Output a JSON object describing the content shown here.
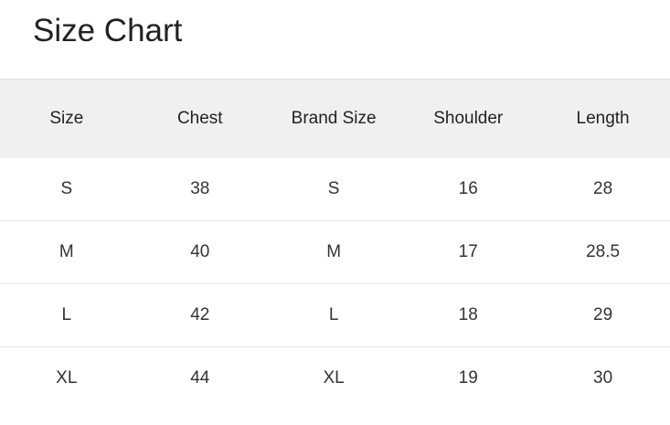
{
  "title": "Size Chart",
  "headers": [
    "Size",
    "Chest",
    "Brand Size",
    "Shoulder",
    "Length"
  ],
  "rows": [
    [
      "S",
      "38",
      "S",
      "16",
      "28"
    ],
    [
      "M",
      "40",
      "M",
      "17",
      "28.5"
    ],
    [
      "L",
      "42",
      "L",
      "18",
      "29"
    ],
    [
      "XL",
      "44",
      "XL",
      "19",
      "30"
    ]
  ]
}
